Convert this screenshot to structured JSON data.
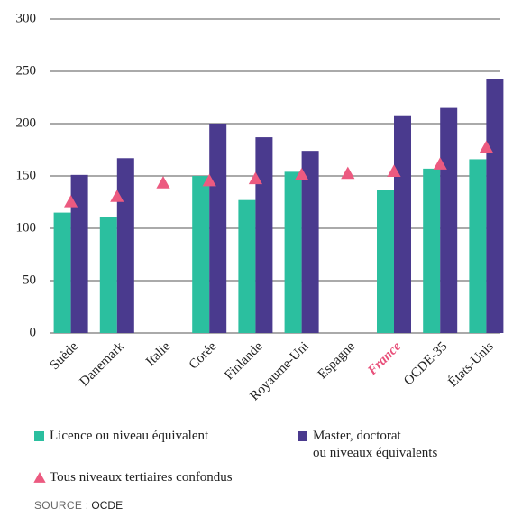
{
  "chart_data": {
    "type": "bar",
    "categories": [
      "Suède",
      "Danemark",
      "Italie",
      "Corée",
      "Finlande",
      "Royaume-Uni",
      "Espagne",
      "France",
      "OCDE-35",
      "États-Unis"
    ],
    "highlight_category": "France",
    "highlight_color": "#e8507a",
    "series": [
      {
        "name": "Licence ou niveau équivalent",
        "color": "#2bbf9f",
        "values": [
          115,
          111,
          null,
          150,
          127,
          154,
          null,
          137,
          157,
          166
        ]
      },
      {
        "name": "Master, doctorat\nou niveaux équivalents",
        "color": "#4a3a8e",
        "values": [
          151,
          167,
          null,
          200,
          187,
          174,
          null,
          208,
          215,
          243
        ]
      },
      {
        "name": "Tous niveaux tertiaires confondus",
        "color": "#ec5a80",
        "marker": "triangle",
        "values": [
          125,
          130,
          143,
          145,
          147,
          151,
          152,
          154,
          161,
          177
        ]
      }
    ],
    "ylim": [
      0,
      300
    ],
    "yticks": [
      0,
      50,
      100,
      150,
      200,
      250,
      300
    ],
    "grid": true,
    "source_label": "SOURCE :",
    "source": "OCDE"
  }
}
